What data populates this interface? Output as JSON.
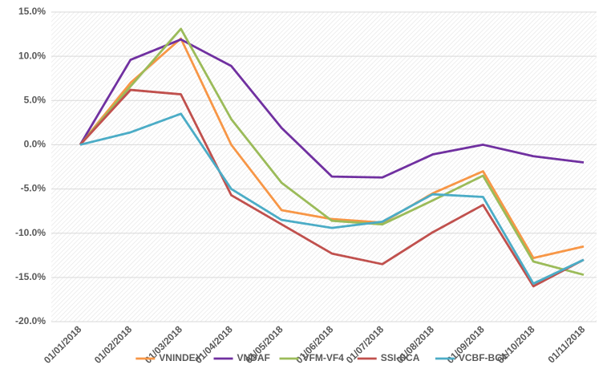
{
  "chart_data": {
    "type": "line",
    "categories": [
      "01/01/2018",
      "01/02/2018",
      "01/03/2018",
      "01/04/2018",
      "01/05/2018",
      "01/06/2018",
      "01/07/2018",
      "01/08/2018",
      "01/09/2018",
      "01/10/2018",
      "01/11/2018"
    ],
    "series": [
      {
        "name": "VNINDEX",
        "color": "#f79646",
        "values": [
          0,
          7.0,
          12.0,
          0,
          -7.4,
          -8.4,
          -8.8,
          -5.5,
          -3.0,
          -12.8,
          -11.5
        ]
      },
      {
        "name": "VNDAF",
        "color": "#7030a0",
        "values": [
          0,
          9.6,
          11.9,
          8.9,
          1.9,
          -3.6,
          -3.7,
          -1.1,
          0,
          -1.3,
          -2.0
        ]
      },
      {
        "name": "VFM-VF4",
        "color": "#9bbb59",
        "values": [
          0,
          6.6,
          13.1,
          2.9,
          -4.3,
          -8.6,
          -9.0,
          -6.3,
          -3.5,
          -13.2,
          -14.7
        ]
      },
      {
        "name": "SSI-SCA",
        "color": "#c0504d",
        "values": [
          0,
          6.2,
          5.7,
          -5.7,
          -9.0,
          -12.3,
          -13.5,
          -9.9,
          -6.8,
          -16.0,
          -13.0
        ]
      },
      {
        "name": "VCBF-BCF",
        "color": "#4bacc6",
        "values": [
          0,
          1.4,
          3.5,
          -5.0,
          -8.5,
          -9.4,
          -8.7,
          -5.6,
          -5.9,
          -15.7,
          -13.0
        ]
      }
    ],
    "ylim": [
      -20,
      15
    ],
    "yticks": [
      {
        "value": -20,
        "label": "-20.0%"
      },
      {
        "value": -15,
        "label": "-15.0%"
      },
      {
        "value": -10,
        "label": "-10.0%"
      },
      {
        "value": -5,
        "label": "-5.0%"
      },
      {
        "value": 0,
        "label": "0.0%"
      },
      {
        "value": 5,
        "label": "5.0%"
      },
      {
        "value": 10,
        "label": "10.0%"
      },
      {
        "value": 15,
        "label": "15.0%"
      }
    ],
    "grid": true,
    "legend": "bottom"
  }
}
